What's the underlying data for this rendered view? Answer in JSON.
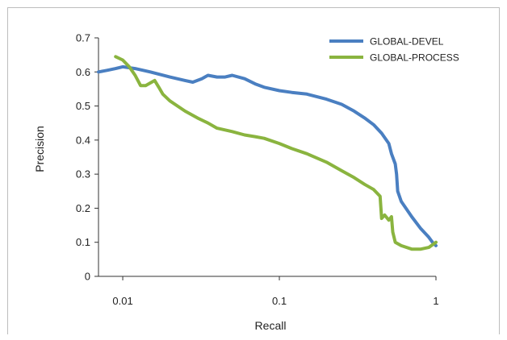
{
  "chart_data": {
    "type": "line",
    "xlabel": "Recall",
    "ylabel": "Precision",
    "xscale": "log",
    "xlim": [
      0.007,
      1
    ],
    "ylim": [
      0,
      0.7
    ],
    "x_ticks": [
      {
        "value": 0.01,
        "label": "0.01"
      },
      {
        "value": 0.1,
        "label": "0.1"
      },
      {
        "value": 1,
        "label": "1"
      }
    ],
    "y_ticks": [
      {
        "value": 0,
        "label": "0"
      },
      {
        "value": 0.1,
        "label": "0.1"
      },
      {
        "value": 0.2,
        "label": "0.2"
      },
      {
        "value": 0.3,
        "label": "0.3"
      },
      {
        "value": 0.4,
        "label": "0.4"
      },
      {
        "value": 0.5,
        "label": "0.5"
      },
      {
        "value": 0.6,
        "label": "0.6"
      },
      {
        "value": 0.7,
        "label": "0.7"
      }
    ],
    "grid": false,
    "legend_position": "top-right",
    "series": [
      {
        "name": "GLOBAL-DEVEL",
        "color": "#4a7fc1",
        "points": [
          [
            0.007,
            0.6
          ],
          [
            0.008,
            0.605
          ],
          [
            0.009,
            0.61
          ],
          [
            0.01,
            0.615
          ],
          [
            0.012,
            0.61
          ],
          [
            0.015,
            0.6
          ],
          [
            0.02,
            0.585
          ],
          [
            0.025,
            0.575
          ],
          [
            0.028,
            0.57
          ],
          [
            0.032,
            0.58
          ],
          [
            0.035,
            0.59
          ],
          [
            0.04,
            0.585
          ],
          [
            0.045,
            0.585
          ],
          [
            0.05,
            0.59
          ],
          [
            0.06,
            0.58
          ],
          [
            0.07,
            0.565
          ],
          [
            0.08,
            0.555
          ],
          [
            0.1,
            0.545
          ],
          [
            0.12,
            0.54
          ],
          [
            0.15,
            0.535
          ],
          [
            0.2,
            0.52
          ],
          [
            0.25,
            0.505
          ],
          [
            0.3,
            0.485
          ],
          [
            0.35,
            0.465
          ],
          [
            0.4,
            0.445
          ],
          [
            0.45,
            0.42
          ],
          [
            0.5,
            0.39
          ],
          [
            0.52,
            0.36
          ],
          [
            0.55,
            0.33
          ],
          [
            0.56,
            0.3
          ],
          [
            0.57,
            0.25
          ],
          [
            0.6,
            0.22
          ],
          [
            0.7,
            0.175
          ],
          [
            0.8,
            0.14
          ],
          [
            0.9,
            0.115
          ],
          [
            0.95,
            0.1
          ],
          [
            1.0,
            0.09
          ]
        ]
      },
      {
        "name": "GLOBAL-PROCESS",
        "color": "#8ab43f",
        "points": [
          [
            0.009,
            0.645
          ],
          [
            0.01,
            0.635
          ],
          [
            0.011,
            0.615
          ],
          [
            0.012,
            0.59
          ],
          [
            0.013,
            0.56
          ],
          [
            0.014,
            0.56
          ],
          [
            0.016,
            0.575
          ],
          [
            0.017,
            0.555
          ],
          [
            0.018,
            0.535
          ],
          [
            0.02,
            0.515
          ],
          [
            0.025,
            0.485
          ],
          [
            0.03,
            0.465
          ],
          [
            0.035,
            0.45
          ],
          [
            0.04,
            0.435
          ],
          [
            0.05,
            0.425
          ],
          [
            0.06,
            0.415
          ],
          [
            0.07,
            0.41
          ],
          [
            0.08,
            0.405
          ],
          [
            0.1,
            0.39
          ],
          [
            0.12,
            0.375
          ],
          [
            0.15,
            0.36
          ],
          [
            0.2,
            0.335
          ],
          [
            0.25,
            0.31
          ],
          [
            0.3,
            0.29
          ],
          [
            0.35,
            0.27
          ],
          [
            0.4,
            0.255
          ],
          [
            0.44,
            0.235
          ],
          [
            0.45,
            0.17
          ],
          [
            0.47,
            0.18
          ],
          [
            0.5,
            0.165
          ],
          [
            0.52,
            0.175
          ],
          [
            0.53,
            0.13
          ],
          [
            0.55,
            0.1
          ],
          [
            0.6,
            0.09
          ],
          [
            0.7,
            0.08
          ],
          [
            0.8,
            0.08
          ],
          [
            0.9,
            0.085
          ],
          [
            1.0,
            0.1
          ]
        ]
      }
    ]
  }
}
